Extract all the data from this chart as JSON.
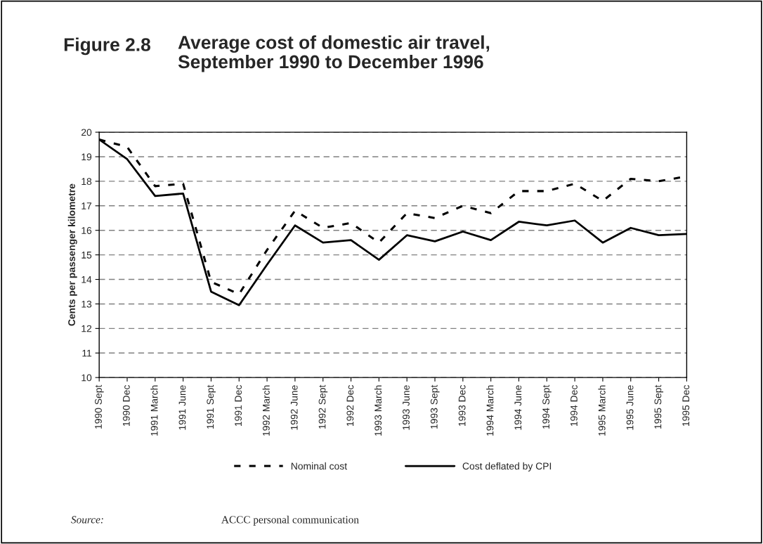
{
  "chart_data": {
    "type": "line",
    "title": "Figure 2.8",
    "subtitle": "Average cost of domestic air travel,\nSeptember 1990 to December 1996",
    "ylabel": "Cents per passenger kilometre",
    "categories": [
      "1990 Sept",
      "1990 Dec",
      "1991 March",
      "1991 June",
      "1991 Sept",
      "1991 Dec",
      "1992 March",
      "1992 June",
      "1992 Sept",
      "1992 Dec",
      "1993 March",
      "1993 June",
      "1993 Sept",
      "1993 Dec",
      "1994 March",
      "1994 June",
      "1994 Sept",
      "1994 Dec",
      "1995 March",
      "1995 June",
      "1995 Sept",
      "1995 Dec"
    ],
    "series": [
      {
        "name": "Nominal cost",
        "color": "#000000",
        "line_style": "dotted",
        "values": [
          19.7,
          19.4,
          17.8,
          17.9,
          13.9,
          13.4,
          15.2,
          16.8,
          16.1,
          16.3,
          15.5,
          16.7,
          16.5,
          17.0,
          16.7,
          17.6,
          17.6,
          17.9,
          17.2,
          18.1,
          18.0,
          18.2
        ]
      },
      {
        "name": "Cost deflated by CPI",
        "color": "#000000",
        "line_style": "solid",
        "values": [
          19.7,
          18.9,
          17.4,
          17.5,
          13.5,
          12.95,
          14.6,
          16.2,
          15.5,
          15.6,
          14.8,
          15.8,
          15.55,
          15.95,
          15.6,
          16.35,
          16.2,
          16.4,
          15.5,
          16.1,
          15.8,
          15.85
        ]
      }
    ],
    "ylim": [
      10,
      20
    ],
    "yticks": [
      10,
      11,
      12,
      13,
      14,
      15,
      16,
      17,
      18,
      19,
      20
    ],
    "grid": "y",
    "legend": "bottom",
    "marker": "none",
    "annotations": [
      "Source:",
      "ACCC personal communication"
    ]
  }
}
